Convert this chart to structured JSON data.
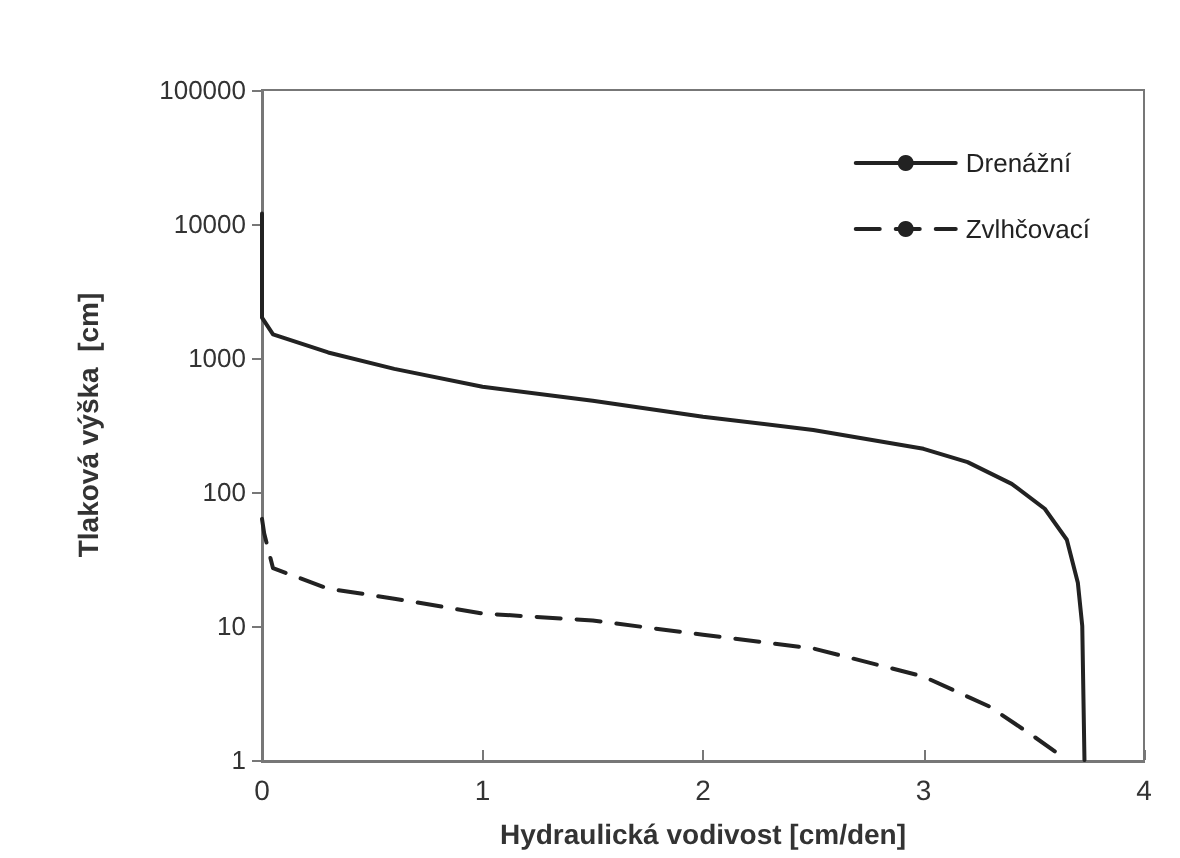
{
  "chart_data": {
    "type": "line",
    "xlabel": "Hydraulická vodivost [cm/den]",
    "ylabel": "Tlaková výška  [cm]",
    "log": "y",
    "xlim": [
      0,
      4
    ],
    "xticks": [
      0,
      1,
      2,
      3,
      4
    ],
    "ylim": [
      1,
      100000
    ],
    "yticks": [
      1,
      10,
      100,
      1000,
      10000,
      100000
    ],
    "grid": false,
    "legend": "top right",
    "marker": "none",
    "series": [
      {
        "name": "Drenážní",
        "color": "#222222",
        "line_style": "solid",
        "x": [
          0,
          0,
          0.05,
          0.3,
          0.6,
          1,
          1.5,
          2,
          2.5,
          3,
          3.2,
          3.4,
          3.55,
          3.65,
          3.7,
          3.72,
          3.73
        ],
        "values": [
          12000,
          2000,
          1500,
          1100,
          830,
          610,
          480,
          365,
          290,
          210,
          167,
          115,
          75,
          44,
          21,
          10,
          1
        ]
      },
      {
        "name": "Zvlhčovací",
        "color": "#222222",
        "line_style": "dashed",
        "x": [
          0,
          0.01,
          0.05,
          0.3,
          0.6,
          1,
          1.5,
          2,
          2.5,
          3,
          3.3,
          3.5,
          3.65
        ],
        "values": [
          63,
          49,
          27,
          19,
          16,
          12.4,
          11,
          8.6,
          6.8,
          4.2,
          2.5,
          1.5,
          1
        ]
      }
    ]
  }
}
